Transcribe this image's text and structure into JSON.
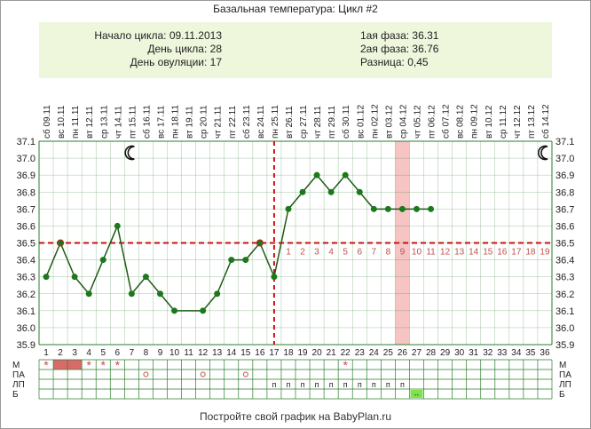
{
  "title": "Базальная температура: Цикл #2",
  "summary": {
    "left": [
      "Начало цикла: 09.11.2013",
      "День цикла: 28",
      "День овуляции: 17"
    ],
    "right": [
      "1ая фаза: 36.31",
      "2ая фаза: 36.76",
      "Разница: 0,45"
    ]
  },
  "footer": "Постройте свой график на BabyPlan.ru",
  "colors": {
    "line": "#1e5a14",
    "marker": "#1a7a1a",
    "coverline": "#cc1111",
    "ovulation_line": "#cc1111",
    "highlight": "#f7c4c4",
    "menses": "#d96a6a",
    "red_text": "#c0504d",
    "grid": "#2e7d2e",
    "info_bg": "#eef6dc",
    "green_cell": "#7fe24a"
  },
  "icons": {
    "moon_left": "moon-icon",
    "moon_right": "moon-icon"
  },
  "chart_data": {
    "type": "line",
    "title": "Базальная температура: Цикл #2",
    "ylim": [
      35.9,
      37.1
    ],
    "y_ticks": [
      "35.9",
      "36.0",
      "36.1",
      "36.2",
      "36.3",
      "36.4",
      "36.5",
      "36.6",
      "36.7",
      "36.8",
      "36.9",
      "37.0",
      "37.1"
    ],
    "days": [
      "1",
      "2",
      "3",
      "4",
      "5",
      "6",
      "7",
      "8",
      "9",
      "10",
      "11",
      "12",
      "13",
      "14",
      "15",
      "16",
      "17",
      "18",
      "19",
      "20",
      "21",
      "22",
      "23",
      "24",
      "25",
      "26",
      "27",
      "28",
      "29",
      "30",
      "31",
      "32",
      "33",
      "34",
      "35",
      "36"
    ],
    "dates": [
      "сб 09.11",
      "вс 10.11",
      "пн 11.11",
      "вт 12.11",
      "ср 13.11",
      "чт 14.11",
      "пт 15.11",
      "сб 16.11",
      "вс 17.11",
      "пн 18.11",
      "вт 19.11",
      "ср 20.11",
      "чт 21.11",
      "пт 22.11",
      "сб 23.11",
      "вс 24.11",
      "пн 25.11",
      "вт 26.11",
      "ср 27.11",
      "чт 28.11",
      "пт 29.11",
      "сб 30.11",
      "вс 01.12",
      "пн 02.12",
      "вт 03.12",
      "ср 04.12",
      "чт 05.12",
      "пт 06.12",
      "сб 07.12",
      "вс 08.12",
      "пн 09.12",
      "вт 10.12",
      "ср 11.12",
      "чт 12.12",
      "пт 13.12",
      "сб 14.12"
    ],
    "temperatures": [
      36.3,
      36.5,
      36.3,
      36.2,
      36.4,
      36.6,
      36.2,
      36.3,
      36.2,
      36.1,
      null,
      36.1,
      36.2,
      36.4,
      36.4,
      36.5,
      36.3,
      36.7,
      36.8,
      36.9,
      36.8,
      36.9,
      36.8,
      36.7,
      36.7,
      36.7,
      36.7,
      36.7
    ],
    "coverline": 36.5,
    "ovulation_day": 17,
    "highlight_day": 26,
    "phase2_numbers": [
      "1",
      "2",
      "3",
      "4",
      "5",
      "6",
      "7",
      "8",
      "9",
      "10",
      "11",
      "12",
      "13",
      "14",
      "15",
      "16",
      "17",
      "18",
      "19"
    ],
    "phase2_start_day": 18,
    "moon_days": [
      7,
      36
    ]
  },
  "table": {
    "row_labels": [
      "М",
      "ПА",
      "ЛП",
      "Б"
    ],
    "m_stars": [
      1,
      4,
      5,
      6,
      22
    ],
    "m_fill_days": [
      2,
      3
    ],
    "pa_circles": [
      8,
      12,
      15
    ],
    "lp_text": "п",
    "lp_days": [
      17,
      18,
      19,
      20,
      21,
      22,
      23,
      24,
      25,
      26
    ],
    "b_text": "--",
    "b_days": [
      27
    ]
  }
}
